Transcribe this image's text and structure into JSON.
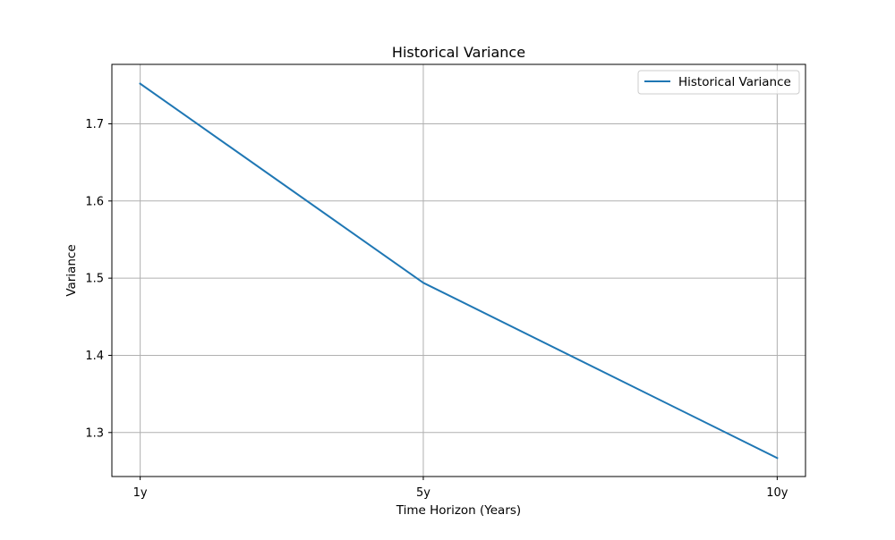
{
  "chart_data": {
    "type": "line",
    "title": "Historical Variance",
    "xlabel": "Time Horizon (Years)",
    "ylabel": "Variance",
    "categories": [
      "1y",
      "5y",
      "10y"
    ],
    "x": [
      1,
      5,
      10
    ],
    "series": [
      {
        "name": "Historical Variance",
        "values": [
          1.752,
          1.494,
          1.267
        ],
        "color": "#1f77b4"
      }
    ],
    "xlim": [
      0.6,
      10.4
    ],
    "ylim": [
      1.243,
      1.777
    ],
    "yticks": [
      1.3,
      1.4,
      1.5,
      1.6,
      1.7
    ],
    "ytick_labels": [
      "1.3",
      "1.4",
      "1.5",
      "1.6",
      "1.7"
    ],
    "grid": true,
    "legend_position": "top-right"
  }
}
